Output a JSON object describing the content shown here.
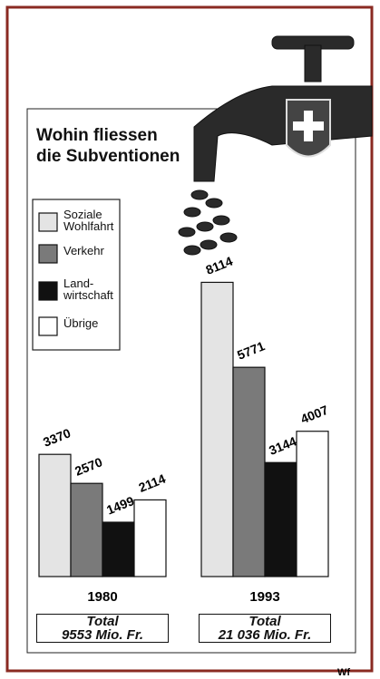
{
  "chart_data": {
    "type": "bar",
    "title": "Wohin fliessen\ndie Subventionen",
    "categories": [
      "1980",
      "1993"
    ],
    "series": [
      {
        "name": "Soziale Wohlfahrt",
        "color": "#e4e4e4",
        "values": [
          3370,
          8114
        ]
      },
      {
        "name": "Verkehr",
        "color": "#7a7a7a",
        "values": [
          2570,
          5771
        ]
      },
      {
        "name": "Land­wirtschaft",
        "color": "#111111",
        "values": [
          1499,
          3144
        ]
      },
      {
        "name": "Übrige",
        "color": "#ffffff",
        "values": [
          2114,
          4007
        ]
      }
    ],
    "totals": [
      "Total\n9553 Mio. Fr.",
      "Total\n21 036 Mio. Fr."
    ],
    "credit": "Wf"
  }
}
